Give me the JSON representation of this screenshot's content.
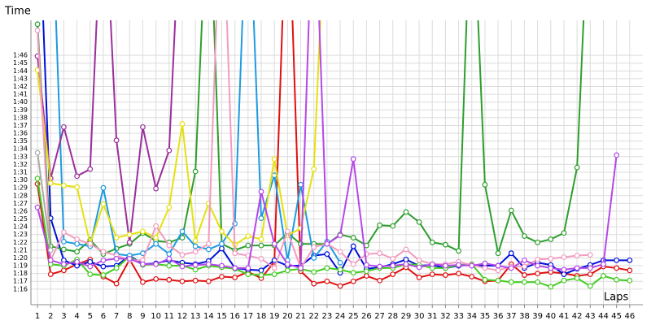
{
  "chart_data": {
    "type": "line",
    "y_label": "Time",
    "x_label": "Laps",
    "grid": true,
    "xlim": [
      0.5,
      47
    ],
    "ylim": [
      74,
      110.5
    ],
    "x": [
      1,
      2,
      3,
      4,
      5,
      6,
      7,
      8,
      9,
      10,
      11,
      12,
      13,
      14,
      15,
      16,
      17,
      18,
      19,
      20,
      21,
      22,
      23,
      24,
      25,
      26,
      27,
      28,
      29,
      30,
      31,
      32,
      33,
      34,
      35,
      36,
      37,
      38,
      39,
      40,
      41,
      42,
      43,
      44,
      45,
      46
    ],
    "yticks": [
      {
        "value": 76,
        "label": "1:16"
      },
      {
        "value": 77,
        "label": "1:17"
      },
      {
        "value": 78,
        "label": "1:18"
      },
      {
        "value": 79,
        "label": "1:19"
      },
      {
        "value": 80,
        "label": "1:20"
      },
      {
        "value": 81,
        "label": "1:21"
      },
      {
        "value": 82,
        "label": "1:22"
      },
      {
        "value": 83,
        "label": "1:23"
      },
      {
        "value": 84,
        "label": "1:24"
      },
      {
        "value": 85,
        "label": "1:25"
      },
      {
        "value": 86,
        "label": "1:26"
      },
      {
        "value": 87,
        "label": "1:27"
      },
      {
        "value": 88,
        "label": "1:28"
      },
      {
        "value": 89,
        "label": "1:29"
      },
      {
        "value": 90,
        "label": "1:30"
      },
      {
        "value": 91,
        "label": "1:31"
      },
      {
        "value": 92,
        "label": "1:32"
      },
      {
        "value": 93,
        "label": "1:33"
      },
      {
        "value": 94,
        "label": "1:34"
      },
      {
        "value": 95,
        "label": "1:35"
      },
      {
        "value": 96,
        "label": "1:36"
      },
      {
        "value": 97,
        "label": "1:37"
      },
      {
        "value": 98,
        "label": "1:38"
      },
      {
        "value": 99,
        "label": "1:39"
      },
      {
        "value": 100,
        "label": "1:40"
      },
      {
        "value": 101,
        "label": "1:41"
      },
      {
        "value": 102,
        "label": "1:42"
      },
      {
        "value": 103,
        "label": "1:43"
      },
      {
        "value": 104,
        "label": "1:44"
      },
      {
        "value": 105,
        "label": "1:45"
      },
      {
        "value": 106,
        "label": "1:46"
      }
    ],
    "series": [
      {
        "color": "#e01010",
        "values": [
          89.5,
          77.9,
          78.4,
          79.2,
          79.8,
          77.6,
          76.7,
          79.8,
          76.9,
          77.3,
          77.2,
          77.0,
          77.1,
          77.0,
          77.6,
          77.5,
          78.2,
          77.4,
          79.5,
          130,
          78.3,
          76.7,
          77.0,
          76.4,
          77.0,
          77.7,
          77.1,
          77.9,
          78.8,
          77.5,
          77.9,
          77.8,
          78.0,
          77.6,
          77.0,
          77.1,
          79.2,
          77.8,
          78.0,
          78.2,
          78.0,
          77.7,
          77.9,
          78.9,
          78.7,
          78.4
        ]
      },
      {
        "color": "#0010d8",
        "values": [
          130,
          85.1,
          79.7,
          79.0,
          79.5,
          78.9,
          79.0,
          80.3,
          79.2,
          79.3,
          79.7,
          79.4,
          79.2,
          79.6,
          81.2,
          78.7,
          78.5,
          78.4,
          79.7,
          79.0,
          79.0,
          80.3,
          80.5,
          78.1,
          81.5,
          78.6,
          78.8,
          79.2,
          79.8,
          79.0,
          79.1,
          78.7,
          79.0,
          79.1,
          79.0,
          79.0,
          80.6,
          78.7,
          79.4,
          79.1,
          77.9,
          78.6,
          79.1,
          79.7,
          79.7,
          79.7
        ]
      },
      {
        "color": "#2e9e2e",
        "values": [
          110,
          81.5,
          81.1,
          80.8,
          82.3,
          80.5,
          81.2,
          81.8,
          83.2,
          82.2,
          82.0,
          82.6,
          91.1,
          130,
          81.8,
          81.0,
          81.6,
          81.6,
          81.6,
          83.2,
          81.8,
          81.8,
          81.8,
          83.0,
          82.6,
          81.6,
          84.2,
          84.1,
          85.9,
          84.6,
          82.0,
          81.7,
          80.9,
          130,
          89.4,
          80.6,
          86.1,
          82.8,
          82.0,
          82.4,
          83.2,
          91.6,
          130,
          null,
          null,
          null
        ]
      },
      {
        "color": "#44cc22",
        "values": [
          90.2,
          79.2,
          79.0,
          79.8,
          77.9,
          77.8,
          78.7,
          80.2,
          79.1,
          79.2,
          79.0,
          79.0,
          78.5,
          79.0,
          78.8,
          78.6,
          77.9,
          77.8,
          77.9,
          78.4,
          78.6,
          78.2,
          78.7,
          78.5,
          78.1,
          78.3,
          78.7,
          78.7,
          79.2,
          79.1,
          78.7,
          78.7,
          79.1,
          79.2,
          77.2,
          77.1,
          76.9,
          76.9,
          76.9,
          76.3,
          77.1,
          77.4,
          76.4,
          77.7,
          77.2,
          77.1
        ]
      },
      {
        "color": "#1e9be0",
        "values": [
          null,
          130,
          82.1,
          81.8,
          81.5,
          89.0,
          80.5,
          80.3,
          80.6,
          81.8,
          80.5,
          83.4,
          81.5,
          81.1,
          81.8,
          84.4,
          130,
          85.1,
          90.6,
          79.7,
          89.4,
          80.0,
          82.1,
          79.4,
          null,
          null,
          null,
          null,
          null,
          null,
          null,
          null,
          null,
          null,
          null,
          null,
          null,
          null,
          null,
          null,
          null,
          null,
          null,
          null,
          null,
          null
        ]
      },
      {
        "color": "#9b2f9b",
        "values": [
          105.9,
          90.2,
          96.8,
          90.5,
          91.4,
          130,
          95.1,
          82.0,
          96.8,
          88.9,
          93.8,
          130,
          null,
          null,
          null,
          null,
          null,
          null,
          null,
          null,
          null,
          null,
          null,
          null,
          null,
          null,
          null,
          null,
          null,
          null,
          null,
          null,
          null,
          null,
          null,
          null,
          null,
          null,
          null,
          null,
          null,
          null,
          null,
          null,
          null,
          null
        ]
      },
      {
        "color": "#e6e010",
        "values": [
          104.1,
          89.6,
          89.3,
          89.1,
          81.8,
          86.9,
          82.6,
          83.0,
          83.4,
          82.6,
          86.5,
          97.2,
          82.2,
          87.0,
          83.4,
          81.7,
          82.8,
          82.4,
          92.7,
          82.9,
          83.8,
          91.4,
          130,
          null,
          null,
          null,
          null,
          null,
          null,
          null,
          null,
          null,
          null,
          null,
          null,
          null,
          null,
          null,
          null,
          null,
          null,
          null,
          null,
          null,
          null,
          null
        ]
      },
      {
        "color": "#f29cc1",
        "values": [
          109.2,
          79.7,
          83.3,
          82.4,
          81.8,
          80.8,
          80.3,
          79.7,
          79.7,
          84.1,
          81.6,
          80.4,
          80.8,
          81.8,
          130,
          80.6,
          80.3,
          79.9,
          78.7,
          83.4,
          78.7,
          81.4,
          81.8,
          80.8,
          79.2,
          80.5,
          80.6,
          79.9,
          81.1,
          79.7,
          79.2,
          79.2,
          79.5,
          79.1,
          78.7,
          78.4,
          78.9,
          78.9,
          79.8,
          79.9,
          80.1,
          80.3,
          80.4,
          null,
          null,
          null
        ]
      },
      {
        "color": "#b548e8",
        "values": [
          86.5,
          79.7,
          79.2,
          79.5,
          78.9,
          79.7,
          79.9,
          79.9,
          79.2,
          79.2,
          79.9,
          78.9,
          79.1,
          79.2,
          79.0,
          78.7,
          78.7,
          88.5,
          81.8,
          79.2,
          78.7,
          130,
          81.8,
          82.9,
          92.7,
          79.1,
          78.9,
          79.0,
          79.2,
          78.8,
          79.2,
          79.0,
          79.1,
          79.0,
          79.3,
          79.0,
          78.7,
          79.7,
          79.0,
          78.7,
          78.5,
          78.7,
          78.7,
          79.2,
          93.2,
          null
        ]
      },
      {
        "color": "#aaaaaa",
        "values": [
          93.5,
          81.0,
          null,
          null,
          null,
          null,
          null,
          null,
          null,
          null,
          null,
          null,
          null,
          null,
          null,
          null,
          null,
          null,
          null,
          null,
          null,
          null,
          null,
          null,
          null,
          null,
          null,
          null,
          null,
          null,
          null,
          null,
          null,
          null,
          null,
          null,
          null,
          null,
          null,
          null,
          null,
          null,
          null,
          null,
          null,
          null
        ]
      }
    ]
  }
}
